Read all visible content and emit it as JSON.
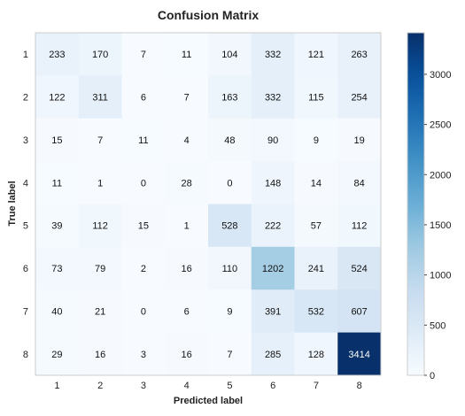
{
  "chart_data": {
    "type": "heatmap",
    "title": "Confusion Matrix",
    "xlabel": "Predicted label",
    "ylabel": "True label",
    "x_categories": [
      "1",
      "2",
      "3",
      "4",
      "5",
      "6",
      "7",
      "8"
    ],
    "y_categories": [
      "1",
      "2",
      "3",
      "4",
      "5",
      "6",
      "7",
      "8"
    ],
    "values": [
      [
        233,
        170,
        7,
        11,
        104,
        332,
        121,
        263
      ],
      [
        122,
        311,
        6,
        7,
        163,
        332,
        115,
        254
      ],
      [
        15,
        7,
        11,
        4,
        48,
        90,
        9,
        19
      ],
      [
        11,
        1,
        0,
        28,
        0,
        148,
        14,
        84
      ],
      [
        39,
        112,
        15,
        1,
        528,
        222,
        57,
        112
      ],
      [
        73,
        79,
        2,
        16,
        110,
        1202,
        241,
        524
      ],
      [
        40,
        21,
        0,
        6,
        9,
        391,
        532,
        607
      ],
      [
        29,
        16,
        3,
        16,
        7,
        285,
        128,
        3414
      ]
    ],
    "colorbar_ticks": [
      0,
      500,
      1000,
      1500,
      2000,
      2500,
      3000
    ],
    "colorbar_range": [
      0,
      3414
    ],
    "colormap": "Blues",
    "grid": false
  }
}
